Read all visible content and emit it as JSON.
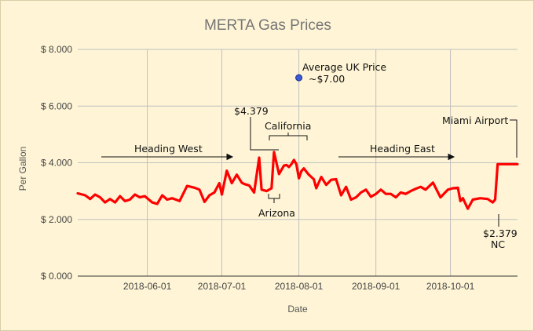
{
  "chart_data": {
    "type": "line",
    "title": "MERTA Gas Prices",
    "xlabel": "Date",
    "ylabel": "Per Gallon",
    "xlim": [
      "2018-05-04",
      "2018-10-28"
    ],
    "ylim": [
      0,
      8
    ],
    "y_ticks": [
      {
        "value": 0,
        "label": "$ 0.000"
      },
      {
        "value": 2,
        "label": "$ 2.000"
      },
      {
        "value": 4,
        "label": "$ 4.000"
      },
      {
        "value": 6,
        "label": "$ 6.000"
      },
      {
        "value": 8,
        "label": "$ 8.000"
      }
    ],
    "x_ticks": [
      "2018-06-01",
      "2018-07-01",
      "2018-08-01",
      "2018-09-01",
      "2018-10-01"
    ],
    "grid": true,
    "colors": {
      "line": "#ff0000",
      "point": "#3b5bd6",
      "grid": "#bfbfbf",
      "background": "#fff5d6"
    },
    "series": [
      {
        "type": "line",
        "x": [
          "2018-05-04",
          "2018-05-07",
          "2018-05-09",
          "2018-05-11",
          "2018-05-13",
          "2018-05-15",
          "2018-05-17",
          "2018-05-19",
          "2018-05-21",
          "2018-05-23",
          "2018-05-25",
          "2018-05-27",
          "2018-05-29",
          "2018-05-31",
          "2018-06-03",
          "2018-06-05",
          "2018-06-07",
          "2018-06-09",
          "2018-06-11",
          "2018-06-14",
          "2018-06-17",
          "2018-06-20",
          "2018-06-22",
          "2018-06-24",
          "2018-06-26",
          "2018-06-28",
          "2018-06-30",
          "2018-07-01",
          "2018-07-03",
          "2018-07-05",
          "2018-07-07",
          "2018-07-09",
          "2018-07-10",
          "2018-07-12",
          "2018-07-14",
          "2018-07-16",
          "2018-07-17",
          "2018-07-19",
          "2018-07-21",
          "2018-07-22",
          "2018-07-24",
          "2018-07-26",
          "2018-07-27",
          "2018-07-28",
          "2018-07-29",
          "2018-07-30",
          "2018-07-31",
          "2018-08-01",
          "2018-08-02",
          "2018-08-03",
          "2018-08-05",
          "2018-08-07",
          "2018-08-08",
          "2018-08-10",
          "2018-08-12",
          "2018-08-14",
          "2018-08-16",
          "2018-08-18",
          "2018-08-20",
          "2018-08-22",
          "2018-08-24",
          "2018-08-26",
          "2018-08-28",
          "2018-08-30",
          "2018-09-01",
          "2018-09-03",
          "2018-09-05",
          "2018-09-07",
          "2018-09-09",
          "2018-09-11",
          "2018-09-13",
          "2018-09-15",
          "2018-09-17",
          "2018-09-19",
          "2018-09-21",
          "2018-09-24",
          "2018-09-27",
          "2018-09-30",
          "2018-10-02",
          "2018-10-04",
          "2018-10-05",
          "2018-10-06",
          "2018-10-08",
          "2018-10-10",
          "2018-10-13",
          "2018-10-16",
          "2018-10-18",
          "2018-10-19",
          "2018-10-20",
          "2018-10-22",
          "2018-10-23",
          "2018-10-24",
          "2018-10-25",
          "2018-10-26",
          "2018-10-27",
          "2018-10-28"
        ],
        "y": [
          2.92,
          2.85,
          2.72,
          2.88,
          2.78,
          2.6,
          2.72,
          2.6,
          2.82,
          2.65,
          2.7,
          2.88,
          2.78,
          2.82,
          2.6,
          2.55,
          2.85,
          2.7,
          2.75,
          2.65,
          3.18,
          3.12,
          3.05,
          2.62,
          2.85,
          2.95,
          3.28,
          2.88,
          3.72,
          3.28,
          3.58,
          3.3,
          3.25,
          3.2,
          2.95,
          4.18,
          3.05,
          3.0,
          3.1,
          4.379,
          3.6,
          3.9,
          3.92,
          3.85,
          3.95,
          4.1,
          3.95,
          3.45,
          3.7,
          3.8,
          3.58,
          3.42,
          3.1,
          3.5,
          3.22,
          3.4,
          3.42,
          2.85,
          3.15,
          2.7,
          2.78,
          2.95,
          3.05,
          2.8,
          2.9,
          3.05,
          2.9,
          2.9,
          2.78,
          2.95,
          2.9,
          3.0,
          3.08,
          3.15,
          3.05,
          3.3,
          2.78,
          3.05,
          3.1,
          3.12,
          2.65,
          2.75,
          2.379,
          2.7,
          2.75,
          2.72,
          2.6,
          2.7,
          3.95,
          3.95,
          3.95,
          3.95,
          3.95,
          3.95,
          3.95,
          3.95
        ]
      },
      {
        "type": "point",
        "x": [
          "2018-08-01"
        ],
        "y": [
          7.0
        ]
      }
    ],
    "annotations": [
      {
        "text": "Average UK Price"
      },
      {
        "text": "~$7.00"
      },
      {
        "text": "$4.379"
      },
      {
        "text": "California"
      },
      {
        "text": "Heading West"
      },
      {
        "text": "Heading East"
      },
      {
        "text": "Arizona"
      },
      {
        "text": "Miami Airport"
      },
      {
        "text": "$2.379"
      },
      {
        "text": "NC"
      }
    ]
  }
}
